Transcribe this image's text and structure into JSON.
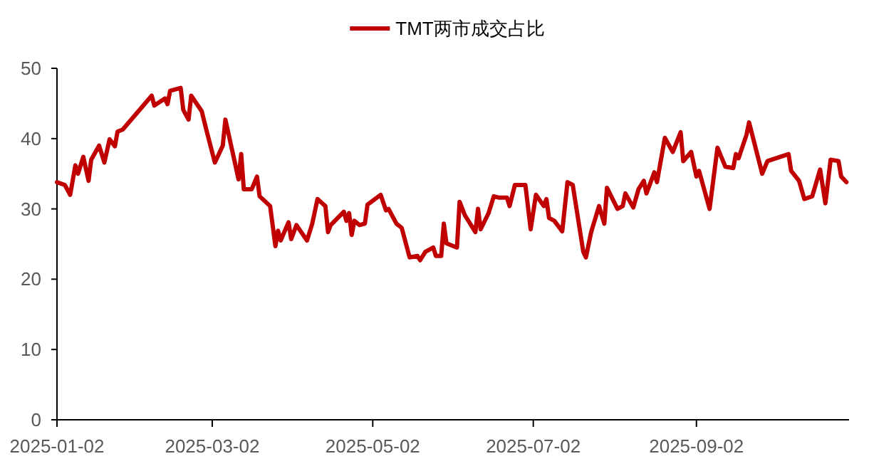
{
  "chart_data": {
    "type": "line",
    "legend": "top",
    "grid": false,
    "marker": "none",
    "line_style": "solid",
    "xlim": [
      "2025-01-02",
      "2025-10-30"
    ],
    "xticks": [
      {
        "value": "2025-01-02",
        "label": "2025-01-02"
      },
      {
        "value": "2025-03-02",
        "label": "2025-03-02"
      },
      {
        "value": "2025-05-02",
        "label": "2025-05-02"
      },
      {
        "value": "2025-07-02",
        "label": "2025-07-02"
      },
      {
        "value": "2025-09-02",
        "label": "2025-09-02"
      }
    ],
    "ylim": [
      0,
      50
    ],
    "yticks": [
      0,
      10,
      20,
      30,
      40,
      50
    ],
    "series": [
      {
        "name": "TMT两市成交占比",
        "color": "#c00000",
        "x": [
          "2025-01-02",
          "2025-01-05",
          "2025-01-07",
          "2025-01-09",
          "2025-01-10",
          "2025-01-12",
          "2025-01-14",
          "2025-01-15",
          "2025-01-18",
          "2025-01-20",
          "2025-01-22",
          "2025-01-24",
          "2025-01-25",
          "2025-01-27",
          "2025-02-07",
          "2025-02-08",
          "2025-02-12",
          "2025-02-13",
          "2025-02-14",
          "2025-02-18",
          "2025-02-19",
          "2025-02-21",
          "2025-02-22",
          "2025-02-26",
          "2025-02-28",
          "2025-03-03",
          "2025-03-06",
          "2025-03-07",
          "2025-03-12",
          "2025-03-13",
          "2025-03-14",
          "2025-03-17",
          "2025-03-19",
          "2025-03-20",
          "2025-03-24",
          "2025-03-26",
          "2025-03-27",
          "2025-03-28",
          "2025-03-31",
          "2025-04-01",
          "2025-04-03",
          "2025-04-07",
          "2025-04-09",
          "2025-04-11",
          "2025-04-14",
          "2025-04-15",
          "2025-04-16",
          "2025-04-21",
          "2025-04-22",
          "2025-04-23",
          "2025-04-24",
          "2025-04-25",
          "2025-04-27",
          "2025-04-29",
          "2025-04-30",
          "2025-05-05",
          "2025-05-07",
          "2025-05-08",
          "2025-05-11",
          "2025-05-13",
          "2025-05-16",
          "2025-05-19",
          "2025-05-20",
          "2025-05-22",
          "2025-05-25",
          "2025-05-26",
          "2025-05-28",
          "2025-05-29",
          "2025-05-30",
          "2025-06-03",
          "2025-06-04",
          "2025-06-06",
          "2025-06-10",
          "2025-06-11",
          "2025-06-12",
          "2025-06-15",
          "2025-06-17",
          "2025-06-19",
          "2025-06-22",
          "2025-06-23",
          "2025-06-25",
          "2025-06-29",
          "2025-07-01",
          "2025-07-03",
          "2025-07-06",
          "2025-07-07",
          "2025-07-08",
          "2025-07-10",
          "2025-07-13",
          "2025-07-15",
          "2025-07-17",
          "2025-07-21",
          "2025-07-22",
          "2025-07-24",
          "2025-07-27",
          "2025-07-29",
          "2025-07-30",
          "2025-08-03",
          "2025-08-05",
          "2025-08-06",
          "2025-08-09",
          "2025-08-11",
          "2025-08-13",
          "2025-08-14",
          "2025-08-17",
          "2025-08-18",
          "2025-08-21",
          "2025-08-24",
          "2025-08-27",
          "2025-08-28",
          "2025-08-31",
          "2025-09-02",
          "2025-09-03",
          "2025-09-07",
          "2025-09-10",
          "2025-09-13",
          "2025-09-16",
          "2025-09-17",
          "2025-09-18",
          "2025-09-21",
          "2025-09-22",
          "2025-09-27",
          "2025-09-29",
          "2025-10-07",
          "2025-10-08",
          "2025-10-11",
          "2025-10-13",
          "2025-10-16",
          "2025-10-19",
          "2025-10-21",
          "2025-10-23",
          "2025-10-26",
          "2025-10-27",
          "2025-10-29"
        ],
        "values": [
          33.8,
          33.4,
          32.0,
          36.2,
          35.0,
          37.4,
          34.0,
          37.0,
          39.0,
          36.6,
          39.9,
          38.9,
          41.0,
          41.3,
          46.1,
          44.7,
          45.7,
          44.9,
          46.8,
          47.2,
          44.1,
          42.7,
          46.1,
          43.9,
          40.9,
          36.6,
          39.0,
          42.7,
          34.2,
          37.8,
          32.8,
          32.8,
          34.6,
          31.8,
          30.4,
          24.7,
          26.9,
          25.5,
          28.1,
          25.7,
          27.7,
          25.5,
          27.9,
          31.4,
          30.4,
          26.7,
          27.7,
          29.6,
          28.3,
          29.4,
          26.3,
          28.3,
          27.7,
          27.9,
          30.6,
          32.0,
          29.8,
          30.0,
          27.9,
          27.3,
          23.1,
          23.3,
          22.7,
          23.9,
          24.5,
          23.3,
          23.3,
          27.9,
          25.1,
          24.5,
          31.0,
          29.1,
          26.7,
          30.0,
          27.1,
          29.4,
          31.8,
          31.6,
          31.6,
          30.4,
          33.4,
          33.4,
          27.1,
          32.0,
          30.4,
          31.4,
          28.7,
          28.3,
          26.8,
          33.8,
          33.4,
          23.9,
          23.1,
          26.7,
          30.4,
          27.9,
          33.0,
          30.0,
          30.4,
          32.2,
          30.2,
          32.8,
          34.0,
          32.2,
          35.2,
          33.8,
          40.1,
          38.1,
          40.9,
          36.8,
          38.1,
          34.6,
          35.4,
          30.0,
          38.7,
          36.0,
          35.8,
          37.8,
          37.2,
          40.5,
          42.3,
          35.0,
          36.8,
          37.8,
          35.4,
          34.0,
          31.4,
          31.8,
          35.6,
          30.8,
          37.0,
          36.8,
          34.6,
          33.8
        ]
      }
    ]
  }
}
